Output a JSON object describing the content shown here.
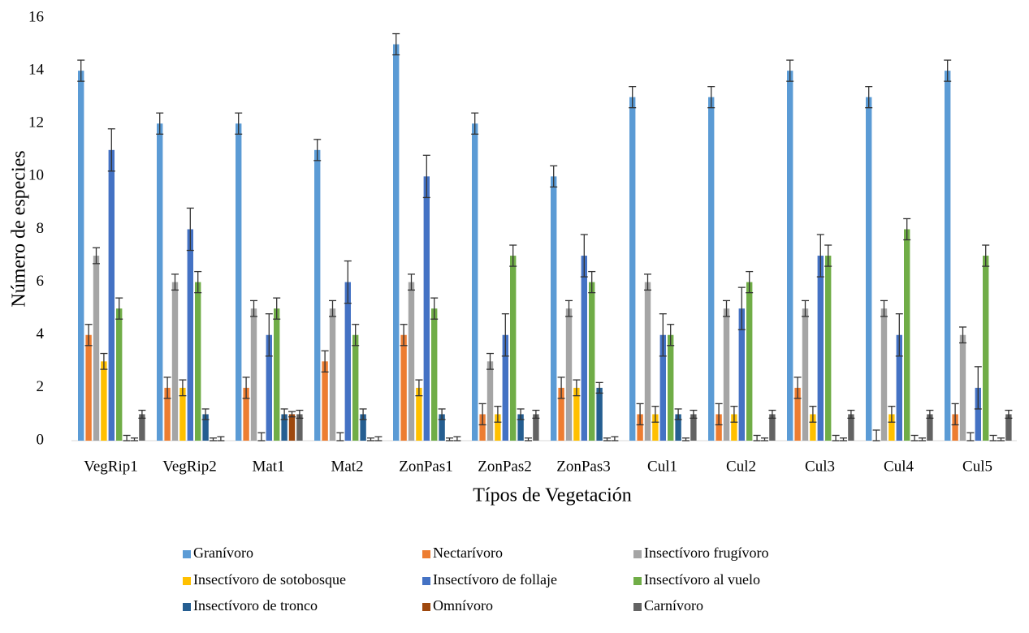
{
  "chart_data": {
    "type": "bar",
    "x_label": "Típos de Vegetación",
    "y_label": "Número de especies",
    "categories": [
      "VegRip1",
      "VegRip2",
      "Mat1",
      "Mat2",
      "ZonPas1",
      "ZonPas2",
      "ZonPas3",
      "Cul1",
      "Cul2",
      "Cul3",
      "Cul4",
      "Cul5"
    ],
    "ylim": [
      0,
      16
    ],
    "yticks": [
      0,
      2,
      4,
      6,
      8,
      10,
      12,
      14,
      16
    ],
    "series": [
      {
        "name": "Granívoro",
        "color": "#5b9bd5",
        "values": [
          14,
          12,
          12,
          11,
          15,
          12,
          10,
          13,
          13,
          14,
          13,
          14
        ],
        "errors": [
          0.4,
          0.4,
          0.4,
          0.4,
          0.4,
          0.4,
          0.4,
          0.4,
          0.4,
          0.4,
          0.4,
          0.4
        ]
      },
      {
        "name": "Nectarívoro",
        "color": "#ed7d31",
        "values": [
          4,
          2,
          2,
          3,
          4,
          1,
          2,
          1,
          1,
          2,
          0,
          1
        ],
        "errors": [
          0.4,
          0.4,
          0.4,
          0.4,
          0.4,
          0.4,
          0.4,
          0.4,
          0.4,
          0.4,
          0.4,
          0.4
        ]
      },
      {
        "name": "Insectívoro frugívoro",
        "color": "#a5a5a5",
        "values": [
          7,
          6,
          5,
          5,
          6,
          3,
          5,
          6,
          5,
          5,
          5,
          4
        ],
        "errors": [
          0.3,
          0.3,
          0.3,
          0.3,
          0.3,
          0.3,
          0.3,
          0.3,
          0.3,
          0.3,
          0.3,
          0.3
        ]
      },
      {
        "name": "Insectívoro de sotobosque",
        "color": "#ffc000",
        "values": [
          3,
          2,
          0,
          0,
          2,
          1,
          2,
          1,
          1,
          1,
          1,
          0
        ],
        "errors": [
          0.3,
          0.3,
          0.3,
          0.3,
          0.3,
          0.3,
          0.3,
          0.3,
          0.3,
          0.3,
          0.3,
          0.3
        ]
      },
      {
        "name": "Insectívoro de follaje",
        "color": "#4472c4",
        "values": [
          11,
          8,
          4,
          6,
          10,
          4,
          7,
          4,
          5,
          7,
          4,
          2
        ],
        "errors": [
          0.8,
          0.8,
          0.8,
          0.8,
          0.8,
          0.8,
          0.8,
          0.8,
          0.8,
          0.8,
          0.8,
          0.8
        ]
      },
      {
        "name": "Insectívoro  al vuelo",
        "color": "#70ad47",
        "values": [
          5,
          6,
          5,
          4,
          5,
          7,
          6,
          4,
          6,
          7,
          8,
          7
        ],
        "errors": [
          0.4,
          0.4,
          0.4,
          0.4,
          0.4,
          0.4,
          0.4,
          0.4,
          0.4,
          0.4,
          0.4,
          0.4
        ]
      },
      {
        "name": "Insectívoro de tronco",
        "color": "#255e91",
        "values": [
          0,
          1,
          1,
          1,
          1,
          1,
          2,
          1,
          0,
          0,
          0,
          0
        ],
        "errors": [
          0.2,
          0.2,
          0.2,
          0.2,
          0.2,
          0.2,
          0.2,
          0.2,
          0.2,
          0.2,
          0.2,
          0.2
        ]
      },
      {
        "name": "Omnívoro",
        "color": "#9e480e",
        "values": [
          0,
          0,
          1,
          0,
          0,
          0,
          0,
          0,
          0,
          0,
          0,
          0
        ],
        "errors": [
          0.1,
          0.1,
          0.1,
          0.1,
          0.1,
          0.1,
          0.1,
          0.1,
          0.1,
          0.1,
          0.1,
          0.1
        ]
      },
      {
        "name": "Carnívoro",
        "color": "#636363",
        "values": [
          1,
          0,
          1,
          0,
          0,
          1,
          0,
          1,
          1,
          1,
          1,
          1
        ],
        "errors": [
          0.15,
          0.15,
          0.15,
          0.15,
          0.15,
          0.15,
          0.15,
          0.15,
          0.15,
          0.15,
          0.15,
          0.15
        ]
      }
    ]
  }
}
